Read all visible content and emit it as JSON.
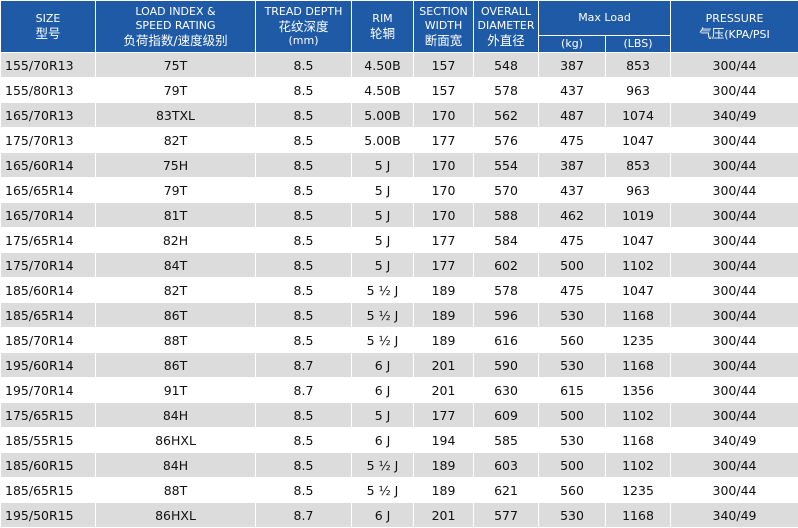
{
  "headers": {
    "size_en": "SIZE",
    "size_cn": "型号",
    "load_en1": "LOAD INDEX &",
    "load_en2": "SPEED RATING",
    "load_cn": "负荷指数/速度级别",
    "tread_en": "TREAD DEPTH",
    "tread_cn": "花纹深度",
    "tread_unit": "(mm)",
    "rim_en": "RIM",
    "rim_cn": "轮辋",
    "section_en1": "SECTION",
    "section_en2": "WIDTH",
    "section_cn": "断面宽",
    "overall_en1": "OVERALL",
    "overall_en2": "DIAMETER",
    "overall_cn": "外直径",
    "maxload": "Max Load",
    "kg": "(kg)",
    "lbs": "(LBS)",
    "pressure_en": "PRESSURE",
    "pressure_cn": "气压",
    "pressure_unit": "(KPA/PSI"
  },
  "rows": [
    {
      "size": "155/70R13",
      "load": "75T",
      "tread": "8.5",
      "rim": "4.50B",
      "section": "157",
      "diameter": "548",
      "kg": "387",
      "lbs": "853",
      "pressure": "300/44"
    },
    {
      "size": "155/80R13",
      "load": "79T",
      "tread": "8.5",
      "rim": "4.50B",
      "section": "157",
      "diameter": "578",
      "kg": "437",
      "lbs": "963",
      "pressure": "300/44"
    },
    {
      "size": "165/70R13",
      "load": "83TXL",
      "tread": "8.5",
      "rim": "5.00B",
      "section": "170",
      "diameter": "562",
      "kg": "487",
      "lbs": "1074",
      "pressure": "340/49"
    },
    {
      "size": "175/70R13",
      "load": "82T",
      "tread": "8.5",
      "rim": "5.00B",
      "section": "177",
      "diameter": "576",
      "kg": "475",
      "lbs": "1047",
      "pressure": "300/44"
    },
    {
      "size": "165/60R14",
      "load": "75H",
      "tread": "8.5",
      "rim": "5 J",
      "section": "170",
      "diameter": "554",
      "kg": "387",
      "lbs": "853",
      "pressure": "300/44"
    },
    {
      "size": "165/65R14",
      "load": "79T",
      "tread": "8.5",
      "rim": "5 J",
      "section": "170",
      "diameter": "570",
      "kg": "437",
      "lbs": "963",
      "pressure": "300/44"
    },
    {
      "size": "165/70R14",
      "load": "81T",
      "tread": "8.5",
      "rim": "5 J",
      "section": "170",
      "diameter": "588",
      "kg": "462",
      "lbs": "1019",
      "pressure": "300/44"
    },
    {
      "size": "175/65R14",
      "load": "82H",
      "tread": "8.5",
      "rim": "5 J",
      "section": "177",
      "diameter": "584",
      "kg": "475",
      "lbs": "1047",
      "pressure": "300/44"
    },
    {
      "size": "175/70R14",
      "load": "84T",
      "tread": "8.5",
      "rim": "5 J",
      "section": "177",
      "diameter": "602",
      "kg": "500",
      "lbs": "1102",
      "pressure": "300/44"
    },
    {
      "size": "185/60R14",
      "load": "82T",
      "tread": "8.5",
      "rim": "5 ½ J",
      "section": "189",
      "diameter": "578",
      "kg": "475",
      "lbs": "1047",
      "pressure": "300/44"
    },
    {
      "size": "185/65R14",
      "load": "86T",
      "tread": "8.5",
      "rim": "5 ½ J",
      "section": "189",
      "diameter": "596",
      "kg": "530",
      "lbs": "1168",
      "pressure": "300/44"
    },
    {
      "size": "185/70R14",
      "load": "88T",
      "tread": "8.5",
      "rim": "5 ½ J",
      "section": "189",
      "diameter": "616",
      "kg": "560",
      "lbs": "1235",
      "pressure": "300/44"
    },
    {
      "size": "195/60R14",
      "load": "86T",
      "tread": "8.7",
      "rim": "6 J",
      "section": "201",
      "diameter": "590",
      "kg": "530",
      "lbs": "1168",
      "pressure": "300/44"
    },
    {
      "size": "195/70R14",
      "load": "91T",
      "tread": "8.7",
      "rim": "6 J",
      "section": "201",
      "diameter": "630",
      "kg": "615",
      "lbs": "1356",
      "pressure": "300/44"
    },
    {
      "size": "175/65R15",
      "load": "84H",
      "tread": "8.5",
      "rim": "5 J",
      "section": "177",
      "diameter": "609",
      "kg": "500",
      "lbs": "1102",
      "pressure": "300/44"
    },
    {
      "size": "185/55R15",
      "load": "86HXL",
      "tread": "8.5",
      "rim": "6 J",
      "section": "194",
      "diameter": "585",
      "kg": "530",
      "lbs": "1168",
      "pressure": "340/49"
    },
    {
      "size": "185/60R15",
      "load": "84H",
      "tread": "8.5",
      "rim": "5 ½ J",
      "section": "189",
      "diameter": "603",
      "kg": "500",
      "lbs": "1102",
      "pressure": "300/44"
    },
    {
      "size": "185/65R15",
      "load": "88T",
      "tread": "8.5",
      "rim": "5 ½ J",
      "section": "189",
      "diameter": "621",
      "kg": "560",
      "lbs": "1235",
      "pressure": "300/44"
    },
    {
      "size": "195/50R15",
      "load": "86HXL",
      "tread": "8.7",
      "rim": "6 J",
      "section": "201",
      "diameter": "577",
      "kg": "530",
      "lbs": "1168",
      "pressure": "340/49"
    }
  ],
  "colors": {
    "header_bg": "#1e5aa6",
    "header_text": "#ffffff",
    "row_alt_bg": "#dcdcdc",
    "row_bg": "#ffffff"
  }
}
